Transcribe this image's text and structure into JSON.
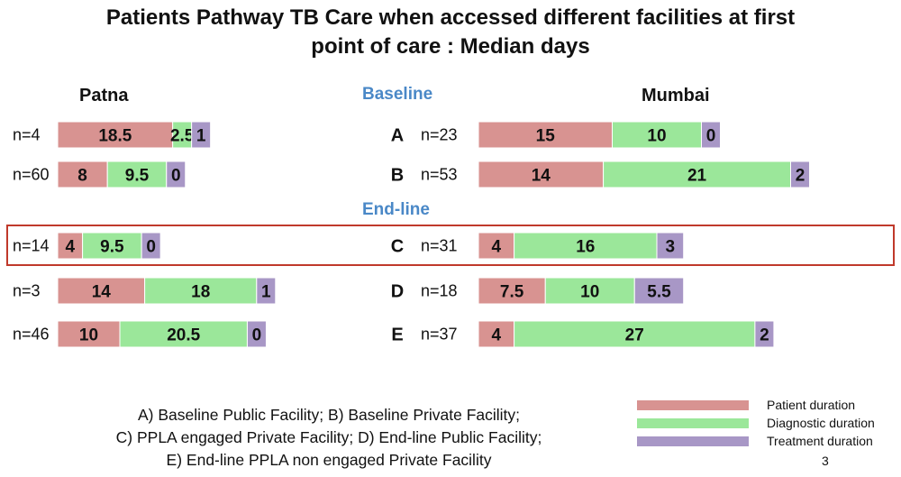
{
  "title": {
    "line1": "Patients Pathway TB Care when accessed different facilities at first",
    "line2": "point of care : Median days"
  },
  "sections": {
    "baseline": "Baseline",
    "endline": "End-line"
  },
  "footnote": {
    "line1": "A) Baseline Public Facility; B) Baseline Private Facility;",
    "line2": "C) PPLA engaged Private Facility; D) End-line Public Facility;",
    "line3": "E) End-line PPLA non engaged Private Facility"
  },
  "page_number": "3",
  "colors": {
    "patient": "#d89391",
    "diagnostic": "#9be79a",
    "treatment": "#a897c6",
    "highlight": "#c0392b",
    "section": "#4a88c7"
  },
  "chart_data": {
    "type": "bar",
    "orientation": "horizontal",
    "stacked": true,
    "series_names": [
      "Patient duration",
      "Diagnostic duration",
      "Treatment duration"
    ],
    "categories": [
      "A",
      "B",
      "C",
      "D",
      "E"
    ],
    "highlighted_category": "C",
    "panels": [
      {
        "name": "Patna",
        "rows": [
          {
            "category": "A",
            "n": "n=4",
            "values": [
              18.5,
              2.5,
              1
            ],
            "labels": [
              "18.5",
              "2.5",
              "1"
            ]
          },
          {
            "category": "B",
            "n": "n=60",
            "values": [
              8,
              9.5,
              0
            ],
            "labels": [
              "8",
              "9.5",
              "0"
            ]
          },
          {
            "category": "C",
            "n": "n=14",
            "values": [
              4,
              9.5,
              0
            ],
            "labels": [
              "4",
              "9.5",
              "0"
            ]
          },
          {
            "category": "D",
            "n": "n=3",
            "values": [
              14,
              18,
              1
            ],
            "labels": [
              "14",
              "18",
              "1"
            ]
          },
          {
            "category": "E",
            "n": "n=46",
            "values": [
              10,
              20.5,
              0
            ],
            "labels": [
              "10",
              "20.5",
              "0"
            ]
          }
        ]
      },
      {
        "name": "Mumbai",
        "rows": [
          {
            "category": "A",
            "n": "n=23",
            "values": [
              15,
              10,
              0
            ],
            "labels": [
              "15",
              "10",
              "0"
            ]
          },
          {
            "category": "B",
            "n": "n=53",
            "values": [
              14,
              21,
              2
            ],
            "labels": [
              "14",
              "21",
              "2"
            ]
          },
          {
            "category": "C",
            "n": "n=31",
            "values": [
              4,
              16,
              3
            ],
            "labels": [
              "4",
              "16",
              "3"
            ]
          },
          {
            "category": "D",
            "n": "n=18",
            "values": [
              7.5,
              10,
              5.5
            ],
            "labels": [
              "7.5",
              "10",
              "5.5"
            ]
          },
          {
            "category": "E",
            "n": "n=37",
            "values": [
              4,
              27,
              2
            ],
            "labels": [
              "4",
              "27",
              "2"
            ]
          }
        ]
      }
    ]
  }
}
